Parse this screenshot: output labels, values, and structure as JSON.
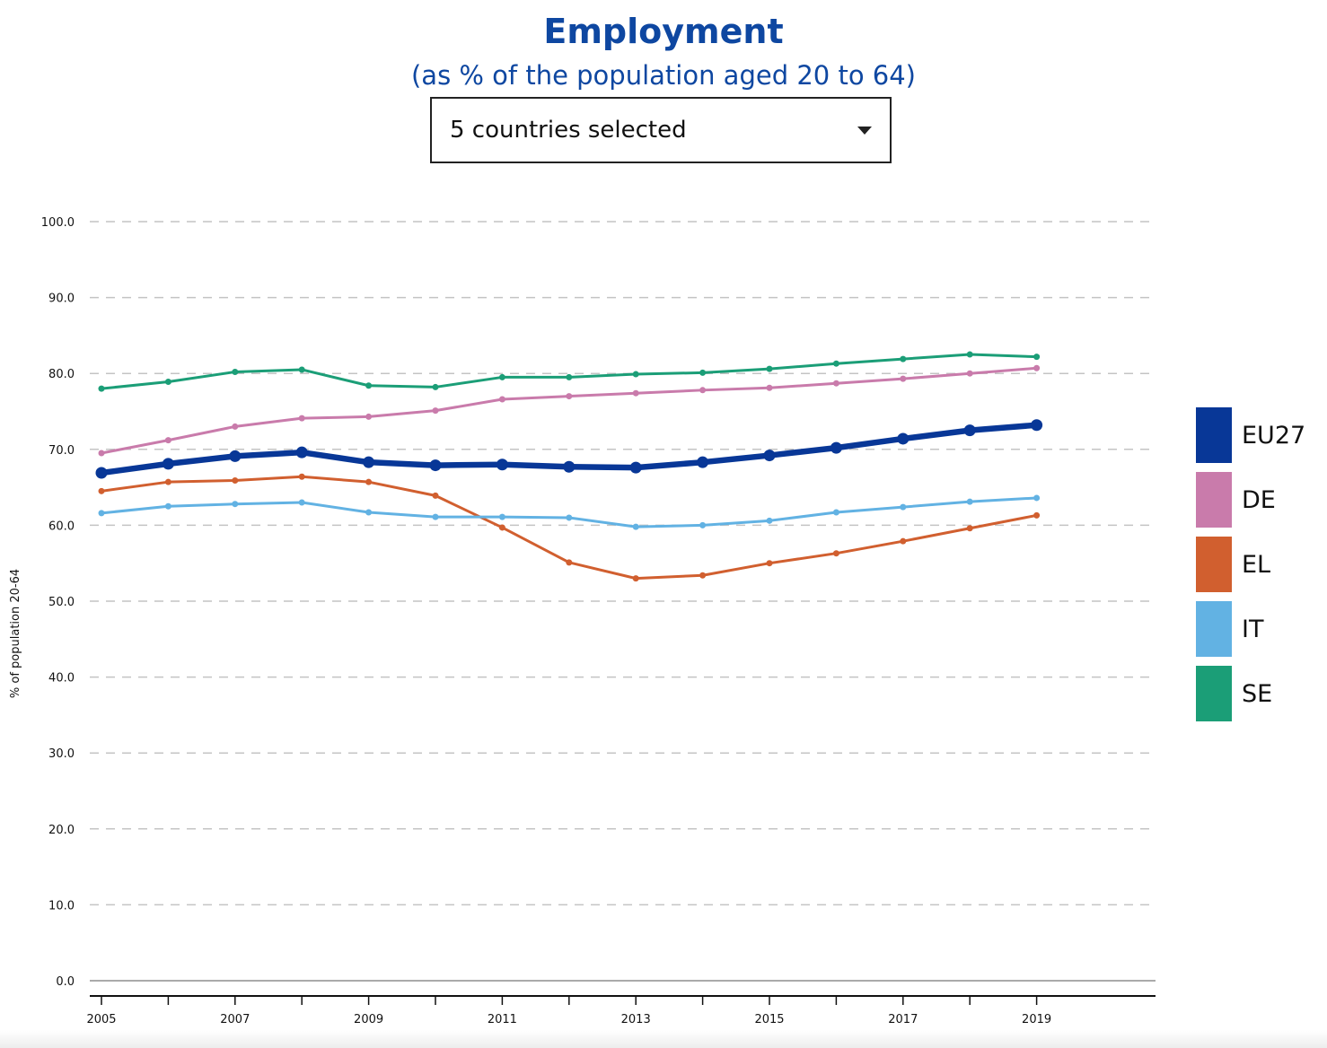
{
  "header": {
    "title": "Employment",
    "subtitle": "(as % of the population aged 20 to 64)"
  },
  "selector": {
    "label": "5 countries selected",
    "icon": "caret-down-icon"
  },
  "chart_data": {
    "type": "line",
    "ylabel": "% of population 20-64",
    "xlabel": "",
    "ylim": [
      0,
      100
    ],
    "yticks": [
      "0.0",
      "10.0",
      "20.0",
      "30.0",
      "40.0",
      "50.0",
      "60.0",
      "70.0",
      "80.0",
      "90.0",
      "100.0"
    ],
    "xlim": [
      2005,
      2020.8
    ],
    "xticks": [
      "2005",
      "2007",
      "2009",
      "2011",
      "2013",
      "2015",
      "2017",
      "2019"
    ],
    "x": [
      2005,
      2006,
      2007,
      2008,
      2009,
      2010,
      2011,
      2012,
      2013,
      2014,
      2015,
      2016,
      2017,
      2018,
      2019
    ],
    "grid": "horizontal dashed",
    "legend_position": "right",
    "series": [
      {
        "name": "SE",
        "color": "#1b9e77",
        "emphasis": false,
        "values": [
          78.0,
          78.9,
          80.2,
          80.5,
          78.4,
          78.2,
          79.5,
          79.5,
          79.9,
          80.1,
          80.6,
          81.3,
          81.9,
          82.5,
          82.2
        ]
      },
      {
        "name": "DE",
        "color": "#c97bab",
        "emphasis": false,
        "values": [
          69.5,
          71.2,
          73.0,
          74.1,
          74.3,
          75.1,
          76.6,
          77.0,
          77.4,
          77.8,
          78.1,
          78.7,
          79.3,
          80.0,
          80.7
        ]
      },
      {
        "name": "EU27",
        "color": "#083797",
        "emphasis": true,
        "values": [
          66.9,
          68.1,
          69.1,
          69.6,
          68.3,
          67.9,
          68.0,
          67.7,
          67.6,
          68.3,
          69.2,
          70.2,
          71.4,
          72.5,
          73.2
        ]
      },
      {
        "name": "EL",
        "color": "#d15f2f",
        "emphasis": false,
        "values": [
          64.5,
          65.7,
          65.9,
          66.4,
          65.7,
          63.9,
          59.7,
          55.1,
          53.0,
          53.4,
          55.0,
          56.3,
          57.9,
          59.6,
          61.3
        ]
      },
      {
        "name": "IT",
        "color": "#62b2e3",
        "emphasis": false,
        "values": [
          61.6,
          62.5,
          62.8,
          63.0,
          61.7,
          61.1,
          61.1,
          61.0,
          59.8,
          60.0,
          60.6,
          61.7,
          62.4,
          63.1,
          63.6
        ]
      }
    ],
    "legend_order": [
      "EU27",
      "DE",
      "EL",
      "IT",
      "SE"
    ]
  }
}
